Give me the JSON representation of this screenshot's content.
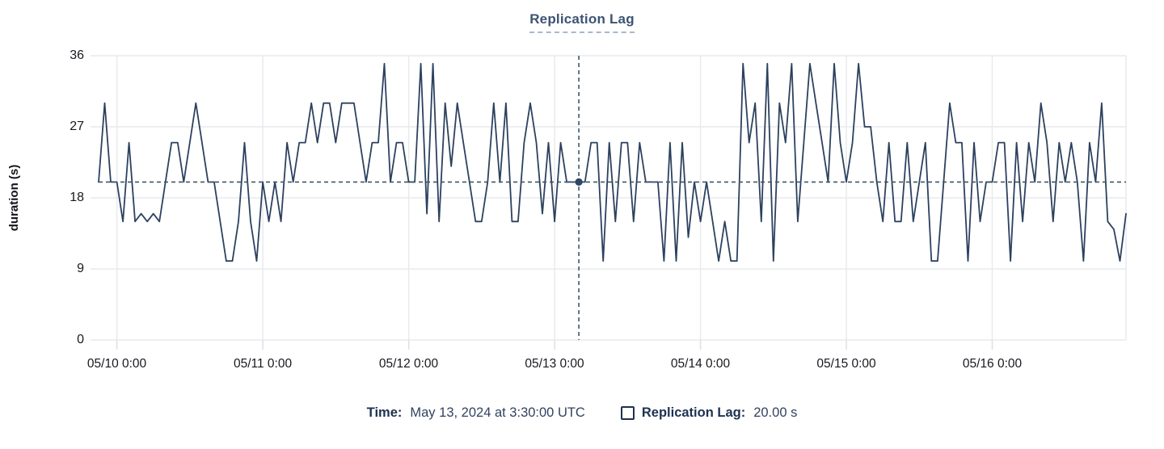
{
  "title": "Replication Lag",
  "y_axis": {
    "label": "duration (s)",
    "ticks": [
      0,
      9,
      18,
      27,
      36
    ],
    "max": 36
  },
  "x_axis": {
    "tick_labels": [
      "05/10 0:00",
      "05/11 0:00",
      "05/12 0:00",
      "05/13 0:00",
      "05/14 0:00",
      "05/15 0:00",
      "05/16 0:00"
    ]
  },
  "tooltip": {
    "time_label": "Time:",
    "time_value": "May 13, 2024 at 3:30:00 UTC",
    "series_label": "Replication Lag:",
    "series_value": "20.00 s"
  },
  "colors": {
    "line": "#2c415f",
    "grid": "#e8eaed",
    "tick_mark": "#dcdfe3",
    "crosshair": "#3c5769",
    "dot": "#2f4764",
    "title": "#3d5373",
    "axis_text": "#17191e",
    "footer_text": "#1e3150"
  },
  "chart_data": {
    "type": "line",
    "title": "Replication Lag",
    "xlabel": "",
    "ylabel": "duration (s)",
    "ylim": [
      0,
      36
    ],
    "grid": true,
    "legend_position": "bottom",
    "x_start": "2024-05-09T21:00:00Z",
    "x_end": "2024-05-16T22:00:00Z",
    "interval_hours": 1,
    "x_gridline_indices": [
      3,
      27,
      51,
      75,
      99,
      123,
      147
    ],
    "series": [
      {
        "name": "Replication Lag",
        "unit": "s",
        "values": [
          20,
          30,
          20,
          20,
          15,
          25,
          15,
          16,
          15,
          16,
          15,
          20,
          25,
          25,
          20,
          25,
          30,
          25,
          20,
          20,
          15,
          10,
          10,
          15,
          25,
          15,
          10,
          20,
          15,
          20,
          15,
          25,
          20,
          25,
          25,
          30,
          25,
          30,
          30,
          25,
          30,
          30,
          30,
          25,
          20,
          25,
          25,
          35,
          20,
          25,
          25,
          20,
          20,
          35,
          16,
          35,
          15,
          30,
          22,
          30,
          25,
          20,
          15,
          15,
          20,
          30,
          20,
          30,
          15,
          15,
          25,
          30,
          25,
          16,
          25,
          15,
          25,
          20,
          20,
          20,
          20,
          25,
          25,
          10,
          25,
          15,
          25,
          25,
          15,
          25,
          20,
          20,
          20,
          10,
          25,
          10,
          25,
          13,
          20,
          15,
          20,
          15,
          10,
          15,
          10,
          10,
          35,
          25,
          30,
          15,
          35,
          10,
          30,
          25,
          35,
          15,
          25,
          35,
          30,
          25,
          20,
          35,
          25,
          20,
          25,
          35,
          27,
          27,
          20,
          15,
          25,
          15,
          15,
          25,
          15,
          20,
          25,
          10,
          10,
          20,
          30,
          25,
          25,
          10,
          25,
          15,
          20,
          20,
          25,
          25,
          10,
          25,
          15,
          25,
          20,
          30,
          25,
          15,
          25,
          20,
          25,
          20,
          10,
          25,
          20,
          30,
          15,
          14,
          10,
          16
        ]
      }
    ],
    "crosshair": {
      "time": "2024-05-13T03:30:00Z",
      "value": 20.0,
      "x_index": 79
    }
  }
}
